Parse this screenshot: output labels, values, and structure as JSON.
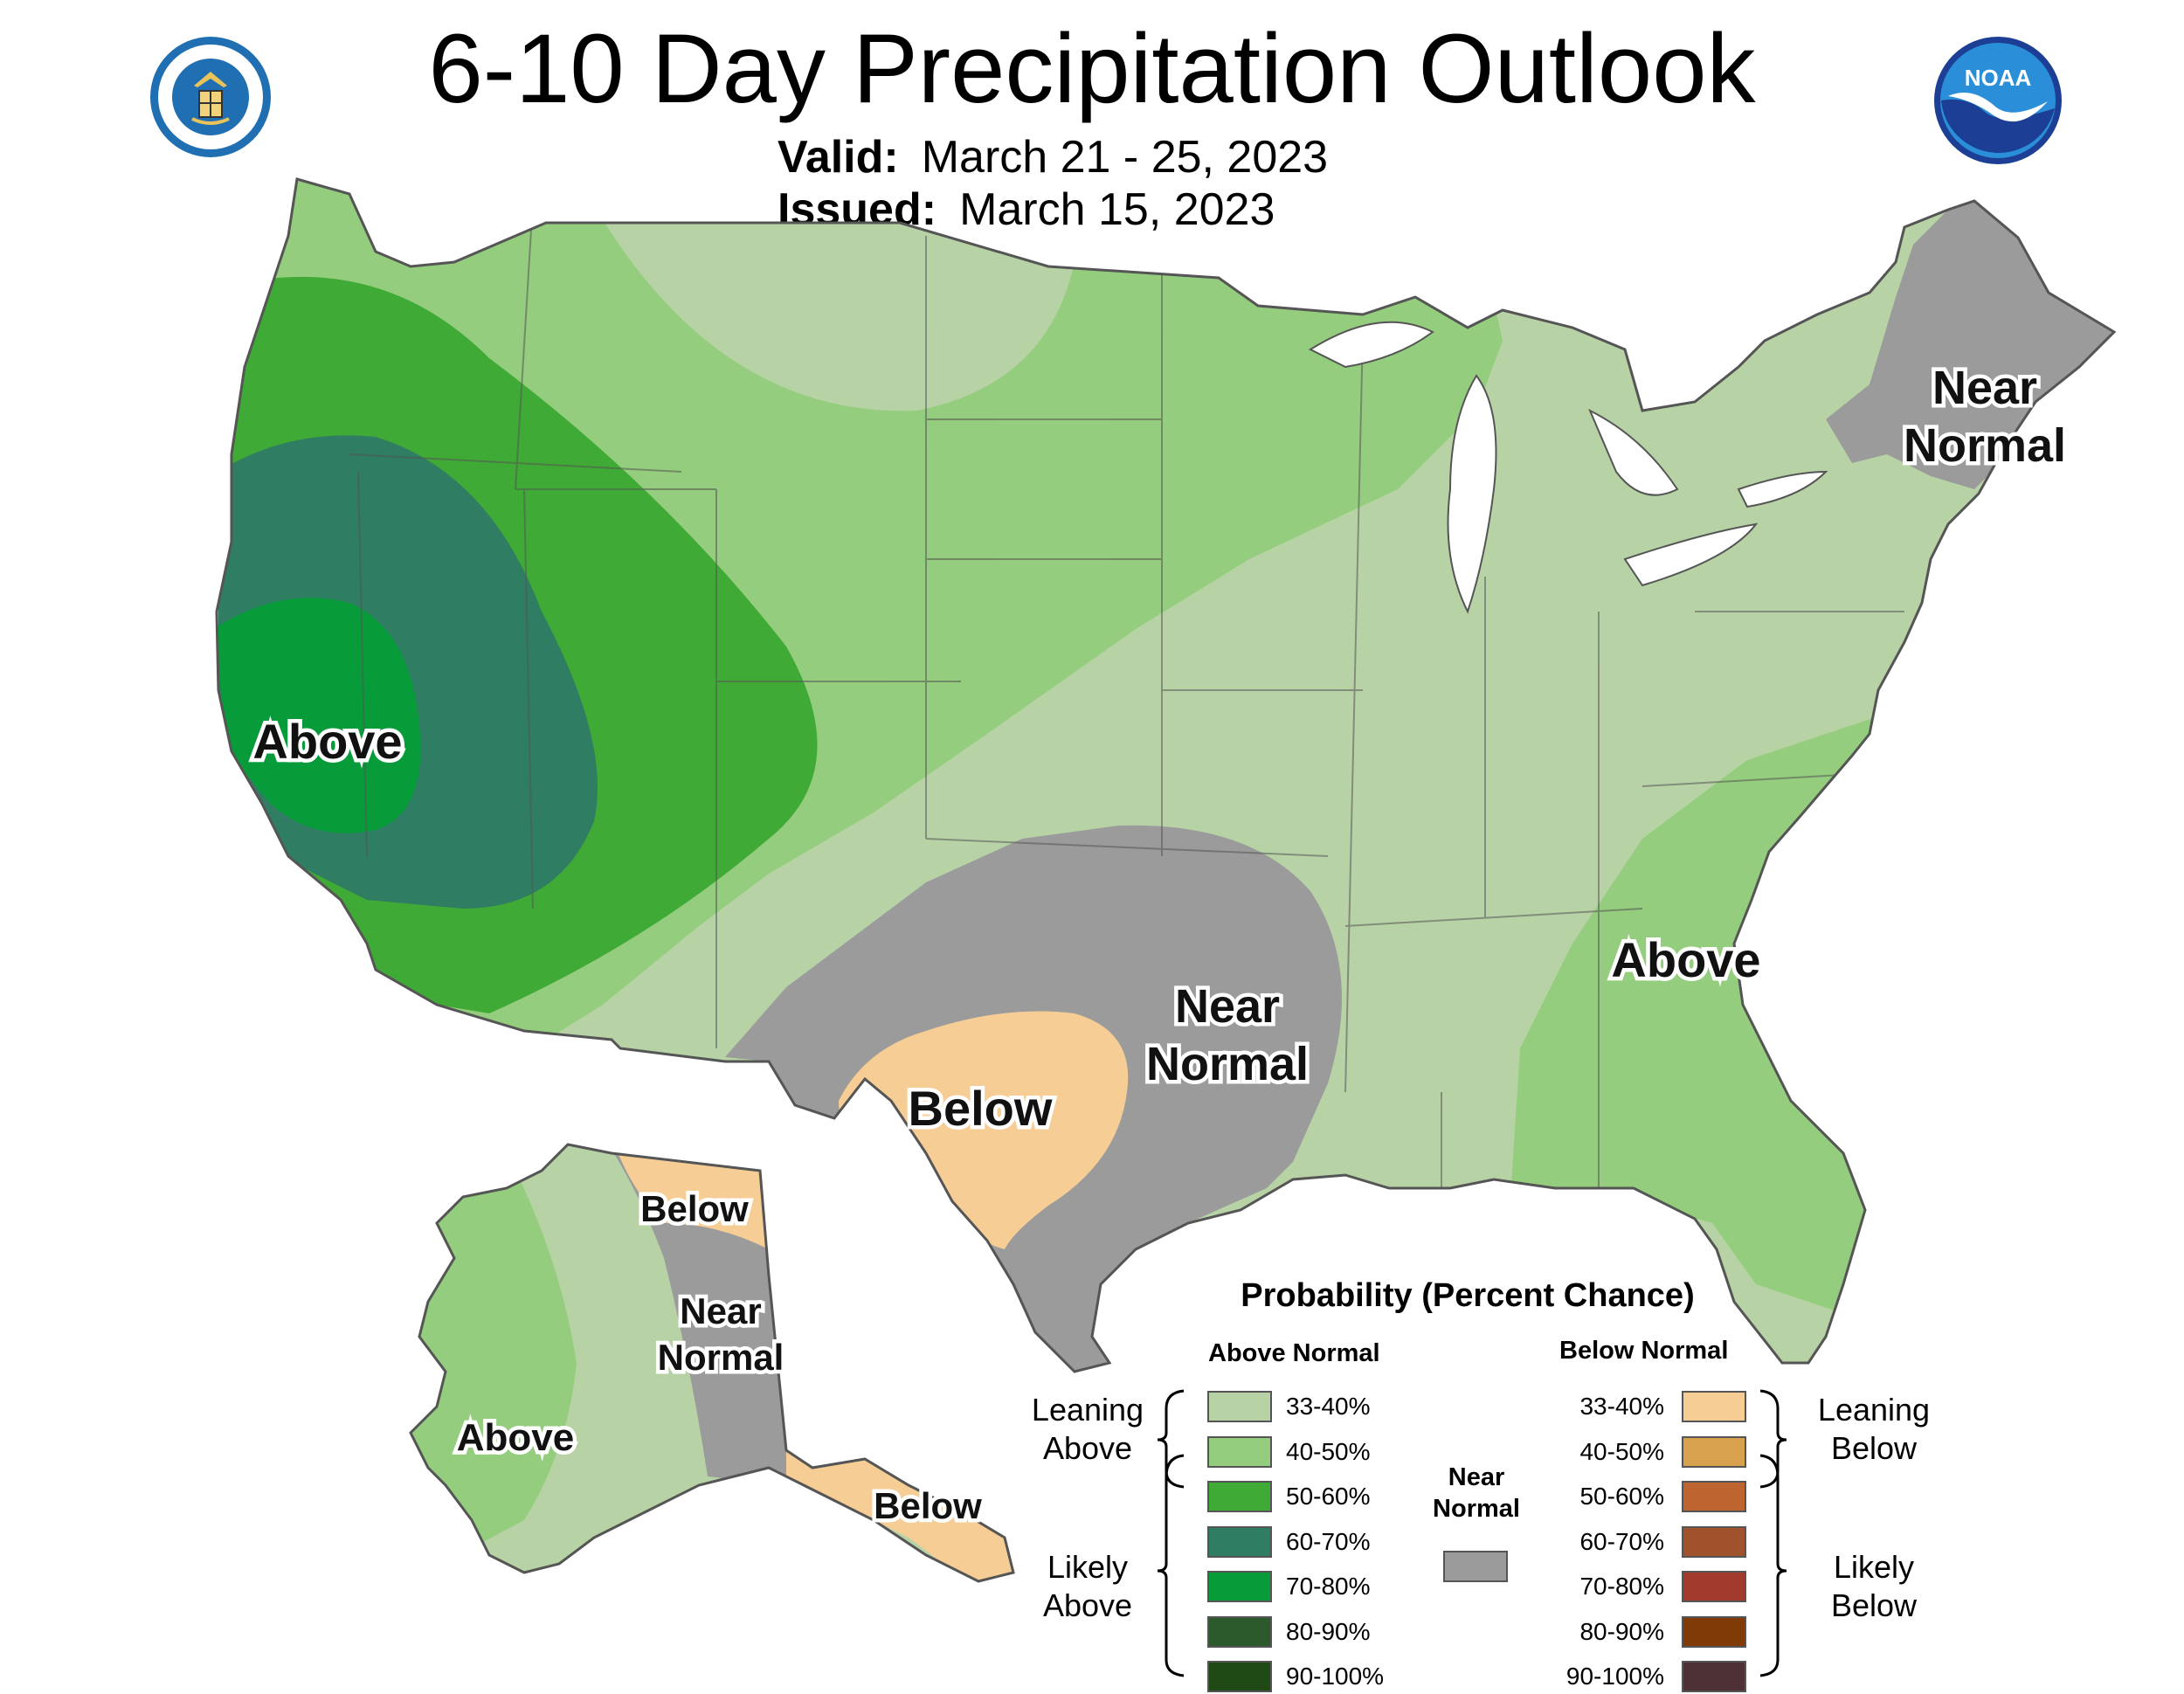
{
  "title": "6-10 Day Precipitation Outlook",
  "valid_label": "Valid:",
  "valid_value": "March 21 - 25, 2023",
  "issued_label": "Issued:",
  "issued_value": "March 15, 2023",
  "logos": {
    "left_seal": "department-of-commerce-seal",
    "right_logo": "noaa-logo",
    "noaa_text": "NOAA"
  },
  "colors": {
    "above_33_40": "#b7d3a5",
    "above_40_50": "#94cd7d",
    "above_50_60": "#3faa35",
    "above_60_70": "#2f7d62",
    "above_70_80": "#079b3a",
    "above_80_90": "#2c5a2c",
    "above_90_100": "#1f4a16",
    "near_normal": "#9b9b9b",
    "below_33_40": "#f5cd95",
    "below_40_50": "#d8a14e",
    "below_50_60": "#bd6431",
    "below_60_70": "#a0522d",
    "below_70_80": "#a13a2c",
    "below_80_90": "#7f3a05",
    "below_90_100": "#4e3134",
    "boundary": "#555555"
  },
  "regions": {
    "west_above": "Above",
    "southeast_above": "Above",
    "texas_below": "Below",
    "southplains_near": [
      "Near",
      "Normal"
    ],
    "northeast_near": [
      "Near",
      "Normal"
    ],
    "alaska_above": "Above",
    "alaska_near": [
      "Near",
      "Normal"
    ],
    "alaska_north_below": "Below",
    "alaska_south_below": "Below"
  },
  "legend": {
    "title": "Probability (Percent Chance)",
    "above_header": "Above Normal",
    "below_header": "Below Normal",
    "near_header": [
      "Near",
      "Normal"
    ],
    "leaning_above": [
      "Leaning",
      "Above"
    ],
    "likely_above": [
      "Likely",
      "Above"
    ],
    "leaning_below": [
      "Leaning",
      "Below"
    ],
    "likely_below": [
      "Likely",
      "Below"
    ],
    "above_rows": [
      {
        "label": "33-40%",
        "color": "#b7d3a5"
      },
      {
        "label": "40-50%",
        "color": "#94cd7d"
      },
      {
        "label": "50-60%",
        "color": "#3faa35"
      },
      {
        "label": "60-70%",
        "color": "#2f7d62"
      },
      {
        "label": "70-80%",
        "color": "#079b3a"
      },
      {
        "label": "80-90%",
        "color": "#2c5a2c"
      },
      {
        "label": "90-100%",
        "color": "#1f4a16"
      }
    ],
    "below_rows": [
      {
        "label": "33-40%",
        "color": "#f5cd95"
      },
      {
        "label": "40-50%",
        "color": "#d8a14e"
      },
      {
        "label": "50-60%",
        "color": "#bd6431"
      },
      {
        "label": "60-70%",
        "color": "#a0522d"
      },
      {
        "label": "70-80%",
        "color": "#a13a2c"
      },
      {
        "label": "80-90%",
        "color": "#7f3a05"
      },
      {
        "label": "90-100%",
        "color": "#4e3134"
      }
    ],
    "near_color": "#9b9b9b"
  }
}
